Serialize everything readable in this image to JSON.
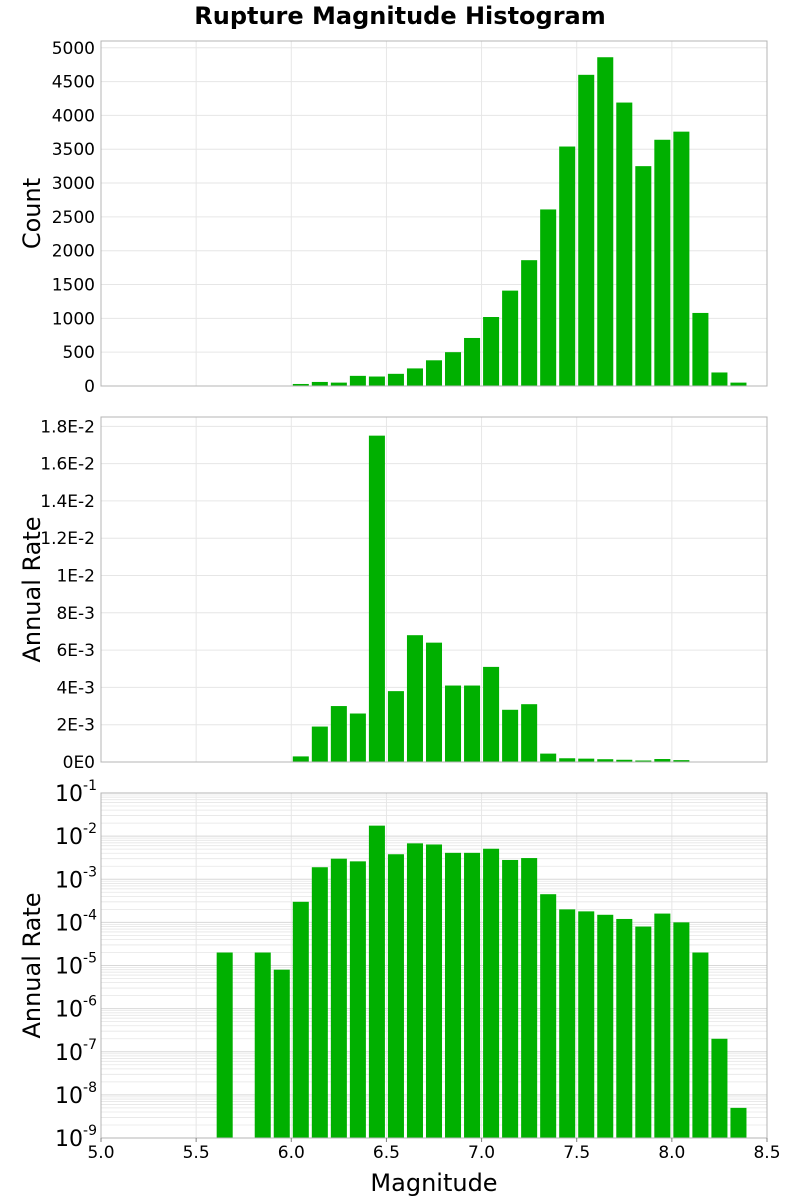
{
  "chart_title": "Rupture Magnitude Histogram",
  "colors": {
    "bar": "#00b000",
    "grid": "#e6e6e6",
    "frame": "#b4b4b4",
    "text": "#000000"
  },
  "chart_data": [
    {
      "type": "bar",
      "title": "Rupture Magnitude Histogram",
      "xlabel": "",
      "ylabel": "Count",
      "xlim": [
        5.0,
        8.5
      ],
      "ylim": [
        0,
        5100
      ],
      "yscale": "linear",
      "yticks": [
        0,
        500,
        1000,
        1500,
        2000,
        2500,
        3000,
        3500,
        4000,
        4500,
        5000
      ],
      "ytick_labels": [
        "0",
        "500",
        "1000",
        "1500",
        "2000",
        "2500",
        "3000",
        "3500",
        "4000",
        "4500",
        "5000"
      ],
      "bin_width": 0.1,
      "x": [
        5.65,
        5.85,
        5.95,
        6.05,
        6.15,
        6.25,
        6.35,
        6.45,
        6.55,
        6.65,
        6.75,
        6.85,
        6.95,
        7.05,
        7.15,
        7.25,
        7.35,
        7.45,
        7.55,
        7.65,
        7.75,
        7.85,
        7.95,
        8.05,
        8.15,
        8.25,
        8.35
      ],
      "values": [
        3,
        3,
        5,
        30,
        60,
        50,
        150,
        140,
        180,
        260,
        380,
        500,
        710,
        1020,
        1410,
        1860,
        2610,
        3540,
        4600,
        4860,
        4190,
        3250,
        3640,
        3760,
        1080,
        200,
        50
      ],
      "grid": true,
      "legend": "none"
    },
    {
      "type": "bar",
      "xlabel": "",
      "ylabel": "Annual Rate",
      "xlim": [
        5.0,
        8.5
      ],
      "ylim": [
        0,
        0.0185
      ],
      "yscale": "linear",
      "yticks": [
        0,
        0.002,
        0.004,
        0.006,
        0.008,
        0.01,
        0.012,
        0.014,
        0.016,
        0.018
      ],
      "ytick_labels": [
        "0E0",
        "2E-3",
        "4E-3",
        "6E-3",
        "8E-3",
        "1E-2",
        "1.2E-2",
        "1.4E-2",
        "1.6E-2",
        "1.8E-2"
      ],
      "bin_width": 0.1,
      "x": [
        5.65,
        5.85,
        5.95,
        6.05,
        6.15,
        6.25,
        6.35,
        6.45,
        6.55,
        6.65,
        6.75,
        6.85,
        6.95,
        7.05,
        7.15,
        7.25,
        7.35,
        7.45,
        7.55,
        7.65,
        7.75,
        7.85,
        7.95,
        8.05,
        8.15,
        8.25,
        8.35
      ],
      "values": [
        2e-05,
        2e-05,
        8e-06,
        0.0003,
        0.0019,
        0.003,
        0.0026,
        0.0175,
        0.0038,
        0.0068,
        0.0064,
        0.0041,
        0.0041,
        0.0051,
        0.0028,
        0.0031,
        0.00045,
        0.0002,
        0.00018,
        0.00015,
        0.00012,
        8e-05,
        0.00016,
        0.0001,
        2e-05,
        2e-07,
        5e-09
      ],
      "grid": true,
      "legend": "none"
    },
    {
      "type": "bar",
      "xlabel": "Magnitude",
      "ylabel": "Annual Rate",
      "xlim": [
        5.0,
        8.5
      ],
      "ylim": [
        1e-09,
        0.1
      ],
      "yscale": "log",
      "ytick_exponents": [
        -9,
        -8,
        -7,
        -6,
        -5,
        -4,
        -3,
        -2,
        -1
      ],
      "xticks": [
        5.0,
        5.5,
        6.0,
        6.5,
        7.0,
        7.5,
        8.0,
        8.5
      ],
      "xtick_labels": [
        "5.0",
        "5.5",
        "6.0",
        "6.5",
        "7.0",
        "7.5",
        "8.0",
        "8.5"
      ],
      "bin_width": 0.1,
      "x": [
        5.65,
        5.85,
        5.95,
        6.05,
        6.15,
        6.25,
        6.35,
        6.45,
        6.55,
        6.65,
        6.75,
        6.85,
        6.95,
        7.05,
        7.15,
        7.25,
        7.35,
        7.45,
        7.55,
        7.65,
        7.75,
        7.85,
        7.95,
        8.05,
        8.15,
        8.25,
        8.35
      ],
      "values": [
        2e-05,
        2e-05,
        8e-06,
        0.0003,
        0.0019,
        0.003,
        0.0026,
        0.0175,
        0.0038,
        0.0068,
        0.0064,
        0.0041,
        0.0041,
        0.0051,
        0.0028,
        0.0031,
        0.00045,
        0.0002,
        0.00018,
        0.00015,
        0.00012,
        8e-05,
        0.00016,
        0.0001,
        2e-05,
        2e-07,
        5e-09
      ],
      "grid": true,
      "legend": "none"
    }
  ]
}
